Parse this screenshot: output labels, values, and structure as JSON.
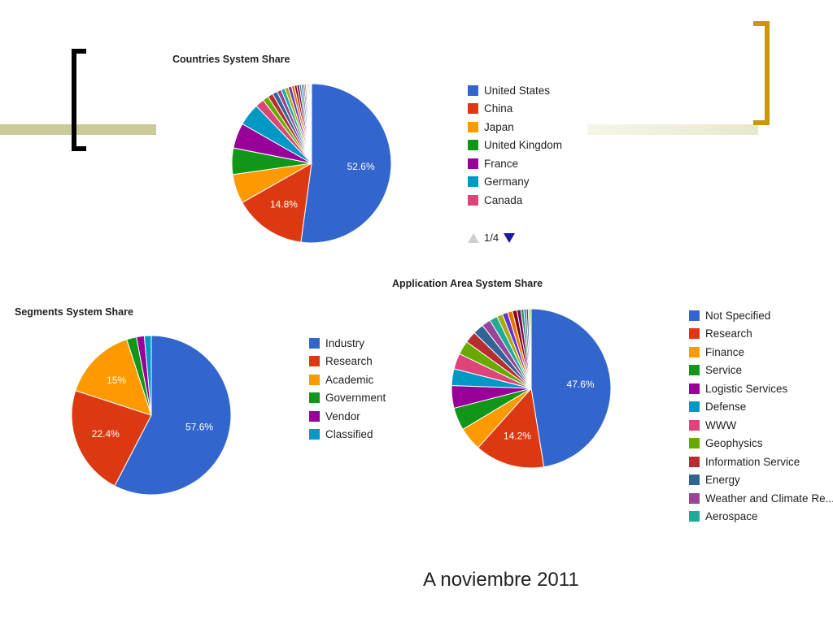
{
  "footer_text": "A noviembre 2011",
  "pager": {
    "label": "1/4"
  },
  "chart_data": [
    {
      "id": "countries",
      "type": "pie",
      "title": "Countries System Share",
      "slice_labels": [
        "52.6%",
        "14.8%"
      ],
      "slices": [
        {
          "name": "United States",
          "value": 52.6,
          "color": "#3366cc"
        },
        {
          "name": "China",
          "value": 14.8,
          "color": "#dc3912"
        },
        {
          "name": "Japan",
          "value": 6.0,
          "color": "#ff9900"
        },
        {
          "name": "United Kingdom",
          "value": 5.4,
          "color": "#109618"
        },
        {
          "name": "France",
          "value": 5.2,
          "color": "#990099"
        },
        {
          "name": "Germany",
          "value": 4.6,
          "color": "#0099c6"
        },
        {
          "name": "Canada",
          "value": 1.8,
          "color": "#dd4477"
        },
        {
          "name": "",
          "value": 1.2,
          "color": "#66aa00"
        },
        {
          "name": "",
          "value": 1.1,
          "color": "#b82e2e"
        },
        {
          "name": "",
          "value": 1.0,
          "color": "#316395"
        },
        {
          "name": "",
          "value": 0.9,
          "color": "#994499"
        },
        {
          "name": "",
          "value": 0.8,
          "color": "#22aa99"
        },
        {
          "name": "",
          "value": 0.7,
          "color": "#aaaa11"
        },
        {
          "name": "",
          "value": 0.7,
          "color": "#6633cc"
        },
        {
          "name": "",
          "value": 0.6,
          "color": "#e67300"
        },
        {
          "name": "",
          "value": 0.5,
          "color": "#8b0707"
        },
        {
          "name": "",
          "value": 0.5,
          "color": "#651067"
        },
        {
          "name": "",
          "value": 0.4,
          "color": "#329262"
        },
        {
          "name": "",
          "value": 0.4,
          "color": "#5574a6"
        },
        {
          "name": "",
          "value": 0.3,
          "color": "#3b3eac"
        },
        {
          "name": "",
          "value": 0.3,
          "color": "#b77322"
        },
        {
          "name": "",
          "value": 0.2,
          "color": "#16d620"
        },
        {
          "name": "",
          "value": 0.2,
          "color": "#b91383"
        },
        {
          "name": "",
          "value": 0.2,
          "color": "#f4359e"
        },
        {
          "name": "",
          "value": 0.2,
          "color": "#9c5935"
        },
        {
          "name": "",
          "value": 0.1,
          "color": "#a9c413"
        },
        {
          "name": "",
          "value": 0.1,
          "color": "#2a778d"
        },
        {
          "name": "",
          "value": 0.1,
          "color": "#668d1c"
        }
      ],
      "legend": [
        "United States",
        "China",
        "Japan",
        "United Kingdom",
        "France",
        "Germany",
        "Canada"
      ]
    },
    {
      "id": "segments",
      "type": "pie",
      "title": "Segments System Share",
      "slice_labels": [
        "57.6%",
        "22.4%",
        "15%"
      ],
      "slices": [
        {
          "name": "Industry",
          "value": 57.6,
          "color": "#3366cc"
        },
        {
          "name": "Research",
          "value": 22.4,
          "color": "#dc3912"
        },
        {
          "name": "Academic",
          "value": 15.0,
          "color": "#ff9900"
        },
        {
          "name": "Government",
          "value": 2.0,
          "color": "#109618"
        },
        {
          "name": "Vendor",
          "value": 1.6,
          "color": "#990099"
        },
        {
          "name": "Classified",
          "value": 1.4,
          "color": "#0099c6"
        }
      ],
      "legend": [
        "Industry",
        "Research",
        "Academic",
        "Government",
        "Vendor",
        "Classified"
      ]
    },
    {
      "id": "application",
      "type": "pie",
      "title": "Application Area System Share",
      "slice_labels": [
        "47.6%",
        "14.2%"
      ],
      "slices": [
        {
          "name": "Not Specified",
          "value": 47.6,
          "color": "#3366cc"
        },
        {
          "name": "Research",
          "value": 14.2,
          "color": "#dc3912"
        },
        {
          "name": "Finance",
          "value": 4.8,
          "color": "#ff9900"
        },
        {
          "name": "Service",
          "value": 4.6,
          "color": "#109618"
        },
        {
          "name": "Logistic Services",
          "value": 4.6,
          "color": "#990099"
        },
        {
          "name": "Defense",
          "value": 3.4,
          "color": "#0099c6"
        },
        {
          "name": "WWW",
          "value": 3.2,
          "color": "#dd4477"
        },
        {
          "name": "Geophysics",
          "value": 2.8,
          "color": "#66aa00"
        },
        {
          "name": "Information Service",
          "value": 2.4,
          "color": "#b82e2e"
        },
        {
          "name": "Energy",
          "value": 2.2,
          "color": "#316395"
        },
        {
          "name": "Weather and Climate Re...",
          "value": 1.8,
          "color": "#994499"
        },
        {
          "name": "Aerospace",
          "value": 1.6,
          "color": "#22aa99"
        },
        {
          "name": "",
          "value": 1.2,
          "color": "#aaaa11"
        },
        {
          "name": "",
          "value": 1.1,
          "color": "#6633cc"
        },
        {
          "name": "",
          "value": 1.0,
          "color": "#e67300"
        },
        {
          "name": "",
          "value": 0.9,
          "color": "#8b0707"
        },
        {
          "name": "",
          "value": 0.8,
          "color": "#651067"
        },
        {
          "name": "",
          "value": 0.6,
          "color": "#329262"
        },
        {
          "name": "",
          "value": 0.5,
          "color": "#5574a6"
        },
        {
          "name": "",
          "value": 0.4,
          "color": "#3b3eac"
        },
        {
          "name": "",
          "value": 0.3,
          "color": "#16d620"
        },
        {
          "name": "",
          "value": 0.3,
          "color": "#a9c413"
        }
      ],
      "legend": [
        "Not Specified",
        "Research",
        "Finance",
        "Service",
        "Logistic Services",
        "Defense",
        "WWW",
        "Geophysics",
        "Information Service",
        "Energy",
        "Weather and Climate Re...",
        "Aerospace"
      ]
    }
  ]
}
